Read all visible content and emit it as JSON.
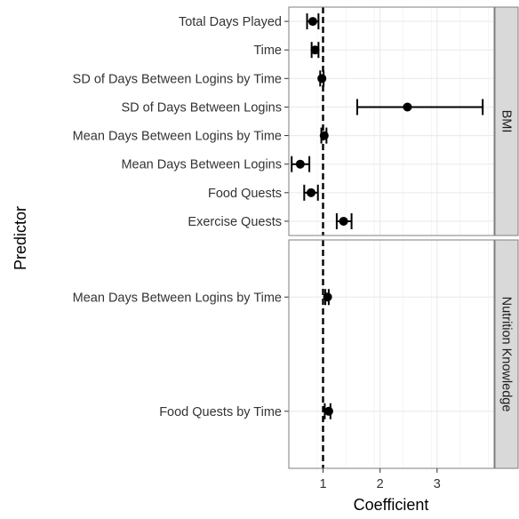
{
  "chart_data": {
    "type": "forest",
    "xlabel": "Coefficient",
    "ylabel": "Predictor",
    "xlim": [
      0.4,
      4.0
    ],
    "x_ticks": [
      1,
      2,
      3
    ],
    "x_tick_labels": [
      "1",
      "2",
      "3"
    ],
    "reference_line": 1,
    "grid": true,
    "panels": [
      {
        "label": "BMI",
        "rows": [
          {
            "predictor": "Total Days Played",
            "estimate": 0.82,
            "lower": 0.72,
            "upper": 0.92
          },
          {
            "predictor": "Time",
            "estimate": 0.86,
            "lower": 0.8,
            "upper": 0.92
          },
          {
            "predictor": "SD of Days Between Logins by Time",
            "estimate": 0.98,
            "lower": 0.95,
            "upper": 1.01
          },
          {
            "predictor": "SD of Days Between Logins",
            "estimate": 2.48,
            "lower": 1.6,
            "upper": 3.8
          },
          {
            "predictor": "Mean Days Between Logins by Time",
            "estimate": 1.02,
            "lower": 0.97,
            "upper": 1.06
          },
          {
            "predictor": "Mean Days Between Logins",
            "estimate": 0.6,
            "lower": 0.45,
            "upper": 0.76
          },
          {
            "predictor": "Food Quests",
            "estimate": 0.79,
            "lower": 0.67,
            "upper": 0.91
          },
          {
            "predictor": "Exercise Quests",
            "estimate": 1.36,
            "lower": 1.24,
            "upper": 1.5
          }
        ]
      },
      {
        "label": "Nutrition Knowledge",
        "rows": [
          {
            "predictor": "Mean Days Between Logins by Time",
            "estimate": 1.08,
            "lower": 1.04,
            "upper": 1.1
          },
          {
            "predictor": "Food Quests by Time",
            "estimate": 1.1,
            "lower": 1.03,
            "upper": 1.13
          }
        ]
      }
    ]
  },
  "colors": {
    "panel_background": "#ffffff",
    "panel_border": "#7f7f7f",
    "grid_major": "#ebebeb",
    "grid_minor": "#f5f5f5",
    "strip_background": "#d9d9d9",
    "point": "#000000",
    "text": "#000000",
    "tick_label": "#333333"
  }
}
